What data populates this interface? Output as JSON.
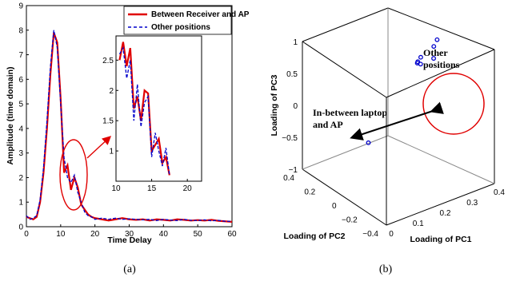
{
  "chart_data": [
    {
      "type": "line",
      "panel_caption": "(a)",
      "xlabel": "Time Delay",
      "ylabel": "Amplitude (time domain)",
      "xlim": [
        0,
        60
      ],
      "ylim": [
        0,
        9
      ],
      "xticks": [
        "0",
        "10",
        "20",
        "30",
        "40",
        "50",
        "60"
      ],
      "yticks": [
        "0",
        "1",
        "2",
        "3",
        "4",
        "5",
        "6",
        "7",
        "8",
        "9"
      ],
      "legend_position": "top-right",
      "series": [
        {
          "name": "Between Receiver and AP",
          "color": "#e00000",
          "style": "solid",
          "x": [
            0,
            1,
            2,
            3,
            4,
            5,
            6,
            7,
            8,
            9,
            10,
            11,
            12,
            13,
            14,
            15,
            16,
            17,
            18,
            19,
            20,
            22,
            24,
            26,
            28,
            30,
            32,
            34,
            36,
            38,
            40,
            42,
            44,
            46,
            48,
            50,
            52,
            54,
            56,
            58,
            60
          ],
          "y": [
            0.4,
            0.35,
            0.3,
            0.4,
            1.0,
            2.2,
            4.0,
            6.2,
            7.9,
            7.5,
            5.2,
            2.2,
            2.5,
            1.5,
            2.0,
            1.6,
            0.9,
            0.7,
            0.5,
            0.4,
            0.35,
            0.3,
            0.25,
            0.3,
            0.35,
            0.3,
            0.28,
            0.3,
            0.25,
            0.3,
            0.28,
            0.25,
            0.3,
            0.28,
            0.25,
            0.27,
            0.25,
            0.28,
            0.24,
            0.22,
            0.2
          ]
        },
        {
          "name": "Other positions",
          "color": "#0000cc",
          "style": "dashed",
          "x": [
            0,
            1,
            2,
            3,
            4,
            5,
            6,
            7,
            8,
            9,
            10,
            11,
            12,
            13,
            14,
            15,
            16,
            17,
            18,
            19,
            20,
            22,
            24,
            26,
            28,
            30,
            32,
            34,
            36,
            38,
            40,
            42,
            44,
            46,
            48,
            50,
            52,
            54,
            56,
            58,
            60
          ],
          "y": [
            0.45,
            0.3,
            0.35,
            0.45,
            1.1,
            2.4,
            4.3,
            6.5,
            8.0,
            7.3,
            5.0,
            2.8,
            2.0,
            1.8,
            2.1,
            1.4,
            1.0,
            0.6,
            0.45,
            0.4,
            0.3,
            0.35,
            0.3,
            0.35,
            0.3,
            0.32,
            0.3,
            0.28,
            0.3,
            0.25,
            0.3,
            0.27,
            0.25,
            0.3,
            0.26,
            0.25,
            0.28,
            0.24,
            0.26,
            0.22,
            0.22
          ]
        }
      ],
      "inset": {
        "xlim": [
          10,
          22
        ],
        "ylim": [
          0.5,
          2.9
        ],
        "xticks": [
          "10",
          "15",
          "20"
        ],
        "yticks": [
          "1",
          "1.5",
          "2",
          "2.5"
        ],
        "series": [
          {
            "name": "Between Receiver and AP",
            "x": [
              10.5,
              11,
              11.5,
              12,
              12.5,
              13,
              13.5,
              14,
              14.5,
              15,
              15.5,
              16,
              16.5,
              17,
              17.5
            ],
            "y": [
              2.5,
              2.8,
              2.4,
              2.7,
              1.7,
              1.9,
              1.5,
              2.0,
              1.95,
              1.0,
              1.1,
              1.2,
              0.8,
              0.9,
              0.6
            ]
          },
          {
            "name": "Other positions",
            "x": [
              10.5,
              11,
              11.5,
              12,
              12.5,
              13,
              13.5,
              14,
              14.5,
              15,
              15.5,
              16,
              16.5,
              17,
              17.5
            ],
            "y": [
              2.6,
              2.7,
              2.2,
              2.5,
              1.5,
              2.1,
              1.4,
              1.8,
              1.9,
              0.9,
              1.3,
              1.0,
              0.75,
              1.05,
              0.6
            ]
          }
        ]
      }
    },
    {
      "type": "scatter",
      "panel_caption": "(b)",
      "xlabel": "Loading of PC1",
      "ylabel": "Loading of PC2",
      "zlabel": "Loading of PC3",
      "xlim": [
        0,
        0.4
      ],
      "ylim": [
        -0.4,
        0.4
      ],
      "zlim": [
        -1,
        1
      ],
      "xticks": [
        "0",
        "0.1",
        "0.2",
        "0.3",
        "0.4"
      ],
      "yticks": [
        "−0.4",
        "−0.2",
        "0",
        "0.2",
        "0.4"
      ],
      "zticks": [
        "−1",
        "−0.5",
        "0",
        "0.5",
        "1"
      ],
      "color": "#0000cc",
      "points": [
        {
          "x": 0.05,
          "y": -0.1,
          "z": -0.12
        },
        {
          "x": 0.33,
          "y": 0.15,
          "z": 0.42
        },
        {
          "x": 0.34,
          "y": 0.18,
          "z": 0.35
        },
        {
          "x": 0.35,
          "y": 0.05,
          "z": 0.55
        },
        {
          "x": 0.36,
          "y": 0.2,
          "z": 0.28
        },
        {
          "x": 0.37,
          "y": 0.1,
          "z": 0.65
        },
        {
          "x": 0.38,
          "y": 0.25,
          "z": 0.3
        },
        {
          "x": 0.39,
          "y": 0.12,
          "z": 0.7
        }
      ],
      "annotations": [
        "Other positions",
        "In-between laptop and AP"
      ]
    }
  ]
}
